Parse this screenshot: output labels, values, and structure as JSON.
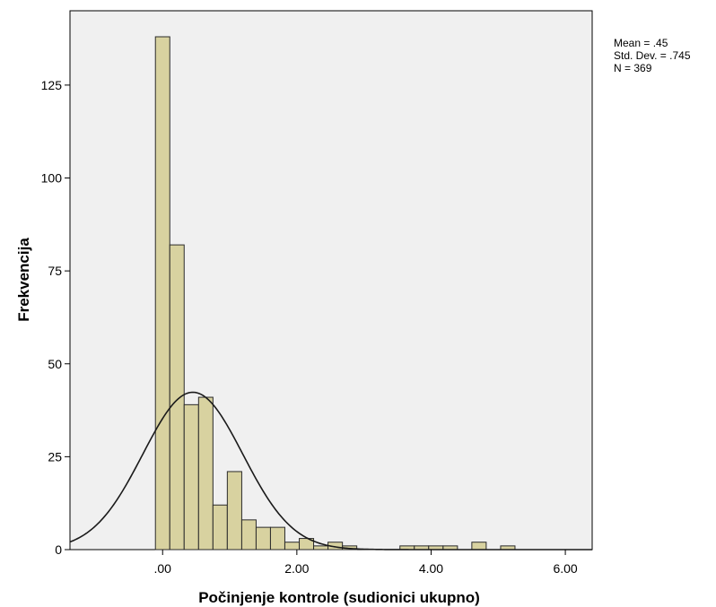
{
  "chart_data": {
    "type": "bar",
    "chart_kind": "histogram",
    "xlabel": "Počinjenje kontrole (sudionici ukupno)",
    "ylabel": "Frekvencija",
    "x_ticks": [
      ".00",
      "2.00",
      "4.00",
      "6.00"
    ],
    "x_tick_values": [
      0,
      2,
      4,
      6
    ],
    "y_ticks": [
      "0",
      "25",
      "50",
      "75",
      "100",
      "125"
    ],
    "y_tick_values": [
      0,
      25,
      50,
      75,
      100,
      125
    ],
    "xlim": [
      -1.38,
      6.4
    ],
    "ylim": [
      0,
      145
    ],
    "bin_width": 0.2143,
    "bins": [
      {
        "x0": -0.107,
        "x1": 0.107,
        "count": 138
      },
      {
        "x0": 0.107,
        "x1": 0.321,
        "count": 82
      },
      {
        "x0": 0.321,
        "x1": 0.536,
        "count": 39
      },
      {
        "x0": 0.536,
        "x1": 0.75,
        "count": 41
      },
      {
        "x0": 0.75,
        "x1": 0.964,
        "count": 12
      },
      {
        "x0": 0.964,
        "x1": 1.179,
        "count": 21
      },
      {
        "x0": 1.179,
        "x1": 1.393,
        "count": 8
      },
      {
        "x0": 1.393,
        "x1": 1.607,
        "count": 6
      },
      {
        "x0": 1.607,
        "x1": 1.821,
        "count": 6
      },
      {
        "x0": 1.821,
        "x1": 2.036,
        "count": 2
      },
      {
        "x0": 2.036,
        "x1": 2.25,
        "count": 3
      },
      {
        "x0": 2.25,
        "x1": 2.464,
        "count": 1
      },
      {
        "x0": 2.464,
        "x1": 2.679,
        "count": 2
      },
      {
        "x0": 2.679,
        "x1": 2.893,
        "count": 1
      },
      {
        "x0": 2.893,
        "x1": 3.107,
        "count": 0
      },
      {
        "x0": 3.107,
        "x1": 3.321,
        "count": 0
      },
      {
        "x0": 3.321,
        "x1": 3.536,
        "count": 0
      },
      {
        "x0": 3.536,
        "x1": 3.75,
        "count": 1
      },
      {
        "x0": 3.75,
        "x1": 3.964,
        "count": 1
      },
      {
        "x0": 3.964,
        "x1": 4.179,
        "count": 1
      },
      {
        "x0": 4.179,
        "x1": 4.393,
        "count": 1
      },
      {
        "x0": 4.393,
        "x1": 4.607,
        "count": 0
      },
      {
        "x0": 4.607,
        "x1": 4.821,
        "count": 2
      },
      {
        "x0": 4.821,
        "x1": 5.036,
        "count": 0
      },
      {
        "x0": 5.036,
        "x1": 5.25,
        "count": 1
      }
    ],
    "normal_curve": {
      "mean": 0.45,
      "std_dev": 0.745,
      "n": 369
    },
    "stats_text": [
      "Mean = .45",
      "Std. Dev. = .745",
      "N = 369"
    ],
    "grid": false,
    "legend": "none",
    "colors": {
      "plot_background": "#f0f0f0",
      "bar_fill": "#d8d2a0",
      "bar_stroke": "#2a2a2a",
      "curve": "#1a1a1a",
      "axis": "#000000"
    }
  }
}
